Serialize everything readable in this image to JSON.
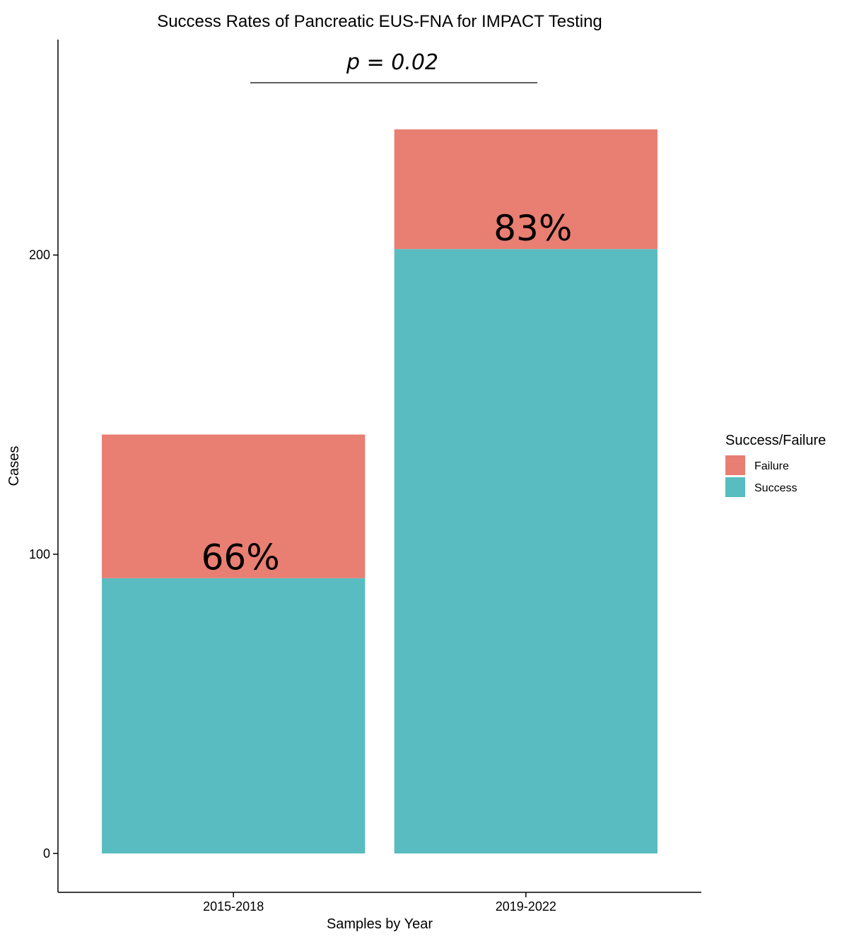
{
  "chart_data": {
    "type": "bar",
    "stacked": true,
    "title": "Success Rates of Pancreatic EUS-FNA for IMPACT Testing",
    "xlabel": "Samples by Year",
    "ylabel": "Cases",
    "categories": [
      "2015-2018",
      "2019-2022"
    ],
    "series": [
      {
        "name": "Success",
        "values": [
          92,
          202
        ],
        "color": "#58BCC0"
      },
      {
        "name": "Failure",
        "values": [
          48,
          40
        ],
        "color": "#E97E72"
      }
    ],
    "bar_labels": [
      "66%",
      "83%"
    ],
    "annotation": "p = 0.02",
    "ylim": [
      -13,
      272
    ],
    "yticks": [
      0,
      100,
      200
    ],
    "legend": {
      "title": "Success/Failure",
      "entries": [
        "Failure",
        "Success"
      ],
      "position": "right"
    },
    "grid": false
  }
}
